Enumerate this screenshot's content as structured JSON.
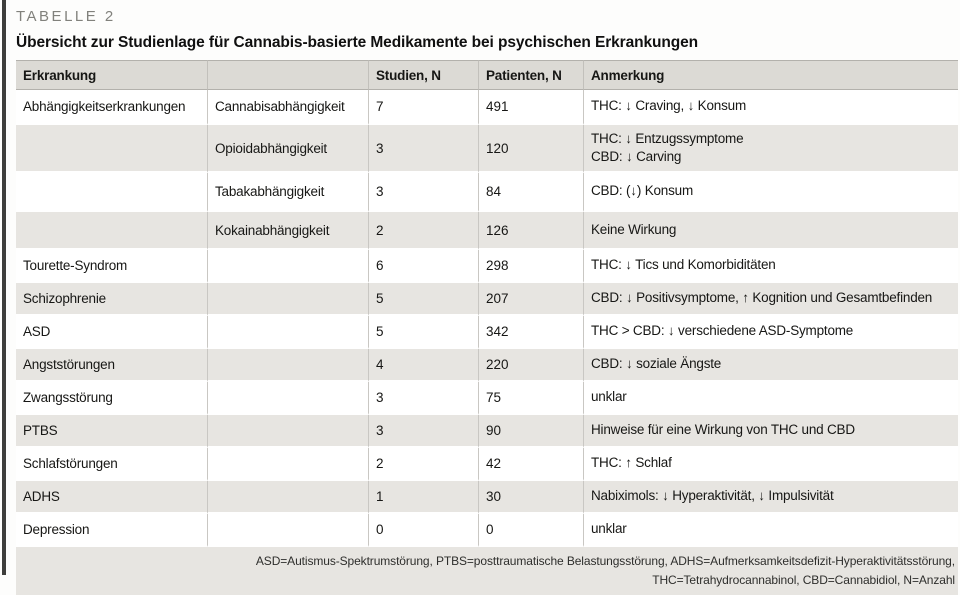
{
  "page": {
    "label": "TABELLE 2",
    "title": "Übersicht zur Studienlage für Cannabis-basierte Medikamente bei psychischen Erkrankungen"
  },
  "table": {
    "columns": [
      "Erkrankung",
      "",
      "Studien, N",
      "Patienten, N",
      "Anmerkung"
    ],
    "rows": [
      {
        "condition": "Abhängigkeitserkrankungen",
        "sub": "Cannabisabhängigkeit",
        "studies": "7",
        "patients": "491",
        "note": "THC: ↓ Craving, ↓ Konsum"
      },
      {
        "condition": "",
        "sub": "Opioidabhängigkeit",
        "studies": "3",
        "patients": "120",
        "note": "THC: ↓ Entzugssymptome\nCBD: ↓ Carving"
      },
      {
        "condition": "",
        "sub": "Tabakabhängigkeit",
        "studies": "3",
        "patients": "84",
        "note": "CBD: (↓) Konsum"
      },
      {
        "condition": "",
        "sub": "Kokainabhängigkeit",
        "studies": "2",
        "patients": "126",
        "note": "Keine Wirkung"
      },
      {
        "condition": "Tourette-Syndrom",
        "sub": "",
        "studies": "6",
        "patients": "298",
        "note": "THC: ↓ Tics und Komorbiditäten"
      },
      {
        "condition": "Schizophrenie",
        "sub": "",
        "studies": "5",
        "patients": "207",
        "note": "CBD: ↓ Positivsymptome, ↑ Kognition und Gesamtbefinden"
      },
      {
        "condition": "ASD",
        "sub": "",
        "studies": "5",
        "patients": "342",
        "note": "THC > CBD: ↓ verschiedene ASD-Symptome"
      },
      {
        "condition": "Angststörungen",
        "sub": "",
        "studies": "4",
        "patients": "220",
        "note": "CBD: ↓ soziale Ängste"
      },
      {
        "condition": "Zwangsstörung",
        "sub": "",
        "studies": "3",
        "patients": "75",
        "note": "unklar"
      },
      {
        "condition": "PTBS",
        "sub": "",
        "studies": "3",
        "patients": "90",
        "note": "Hinweise für eine Wirkung von THC und CBD"
      },
      {
        "condition": "Schlafstörungen",
        "sub": "",
        "studies": "2",
        "patients": "42",
        "note": "THC: ↑ Schlaf"
      },
      {
        "condition": "ADHS",
        "sub": "",
        "studies": "1",
        "patients": "30",
        "note": "Nabiximols: ↓ Hyperaktivität, ↓ Impulsivität"
      },
      {
        "condition": "Depression",
        "sub": "",
        "studies": "0",
        "patients": "0",
        "note": "unklar"
      }
    ],
    "footnote": {
      "line1": "ASD=Autismus-Spektrumstörung, PTBS=posttraumatische Belastungsstörung, ADHS=Aufmerksamkeitsdefizit-Hyperaktivitätsstörung,",
      "line2": "THC=Tetrahydrocannabinol, CBD=Cannabidiol, N=Anzahl"
    }
  },
  "colors": {
    "header_bg": "#dcdad5",
    "row_shaded_bg": "#e7e5e1",
    "rule": "#c9c7c3",
    "label_gray": "#81817c",
    "accent_bar": "#3e3e3c"
  }
}
